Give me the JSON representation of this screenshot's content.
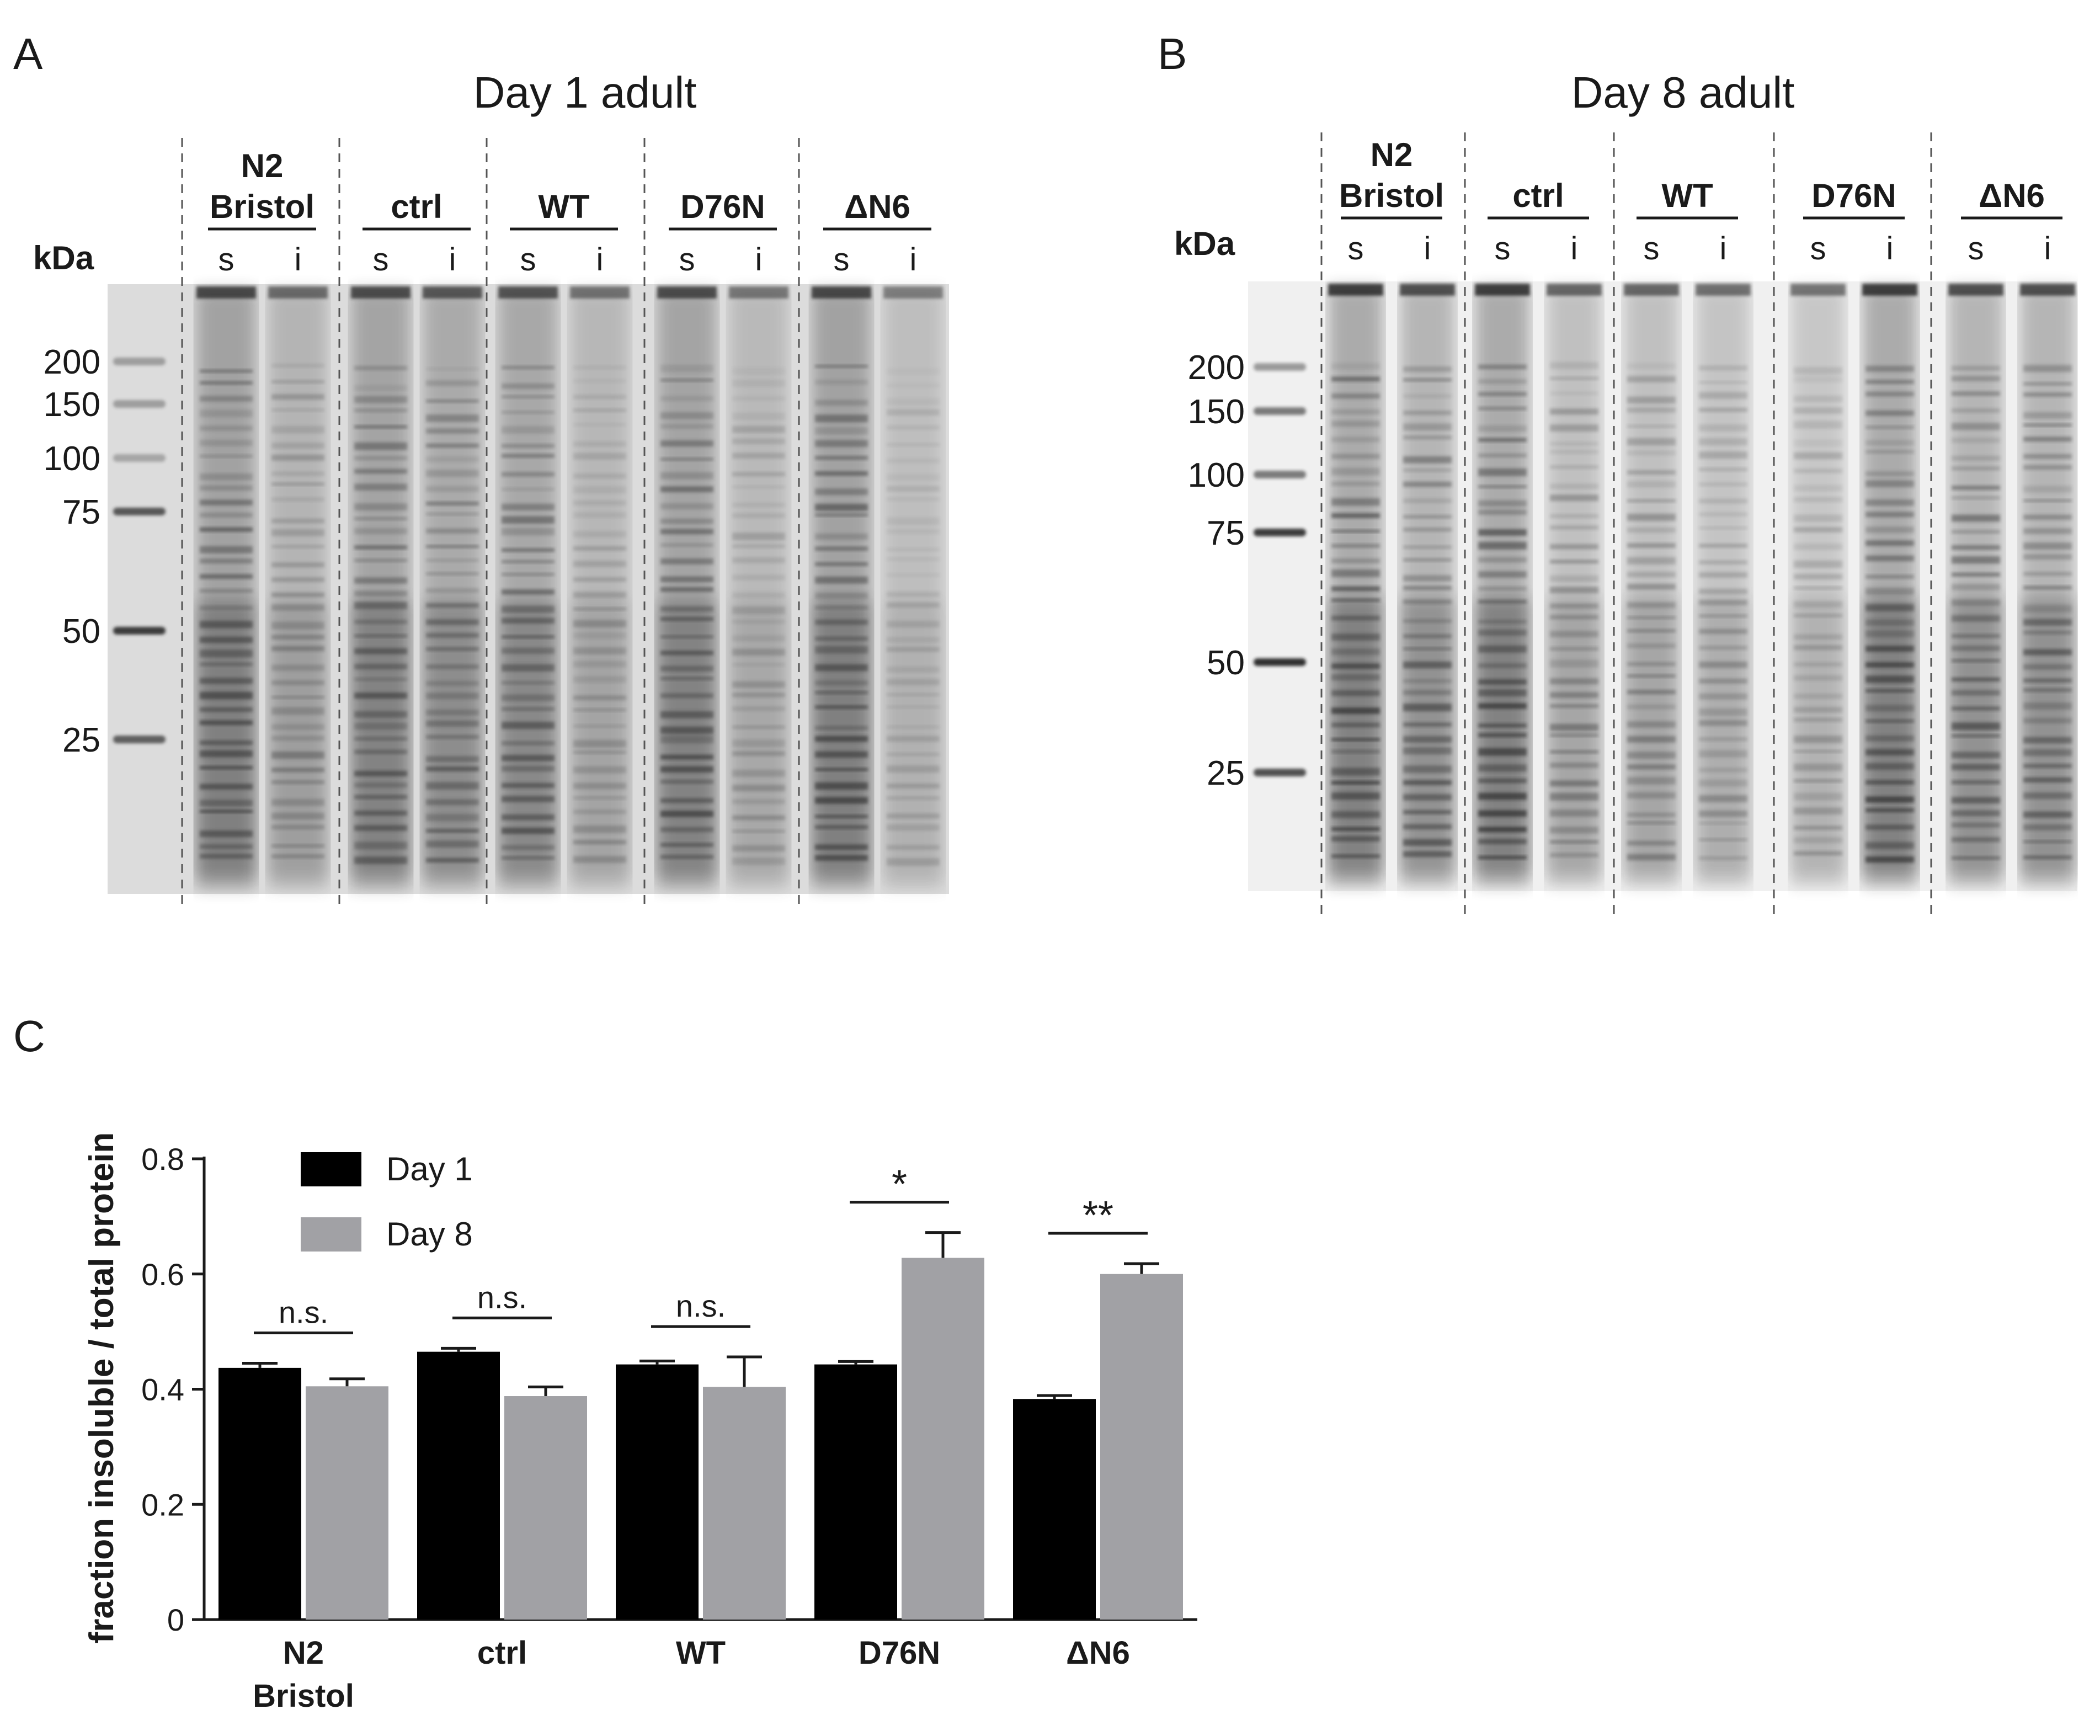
{
  "panels": {
    "a_letter": "A",
    "b_letter": "B",
    "c_letter": "C"
  },
  "gel_a": {
    "title": "Day 1 adult",
    "kda_label": "kDa",
    "markers": [
      "200",
      "150",
      "100",
      "75",
      "50",
      "25"
    ],
    "groups": [
      {
        "lines": [
          "N2",
          "Bristol"
        ],
        "lanes": [
          "s",
          "i"
        ]
      },
      {
        "lines": [
          "ctrl"
        ],
        "lanes": [
          "s",
          "i"
        ]
      },
      {
        "lines": [
          "WT"
        ],
        "lanes": [
          "s",
          "i"
        ]
      },
      {
        "lines": [
          "D76N"
        ],
        "lanes": [
          "s",
          "i"
        ]
      },
      {
        "lines": [
          "ΔN6"
        ],
        "lanes": [
          "s",
          "i"
        ]
      }
    ],
    "colors": {
      "background": "#dcdcdc",
      "band": "#2a2a2a"
    }
  },
  "gel_b": {
    "title": "Day 8 adult",
    "kda_label": "kDa",
    "markers": [
      "200",
      "150",
      "100",
      "75",
      "50",
      "25"
    ],
    "groups": [
      {
        "lines": [
          "N2",
          "Bristol"
        ],
        "lanes": [
          "s",
          "i"
        ]
      },
      {
        "lines": [
          "ctrl"
        ],
        "lanes": [
          "s",
          "i"
        ]
      },
      {
        "lines": [
          "WT"
        ],
        "lanes": [
          "s",
          "i"
        ]
      },
      {
        "lines": [
          "D76N"
        ],
        "lanes": [
          "s",
          "i"
        ]
      },
      {
        "lines": [
          "ΔN6"
        ],
        "lanes": [
          "s",
          "i"
        ]
      }
    ],
    "colors": {
      "background": "#f0f0f0",
      "band": "#1a1a1a"
    }
  },
  "chart_data": {
    "type": "bar",
    "categories": [
      [
        "N2",
        "Bristol"
      ],
      [
        "ctrl"
      ],
      [
        "WT"
      ],
      [
        "D76N"
      ],
      [
        "ΔN6"
      ]
    ],
    "series": [
      {
        "name": "Day 1",
        "values": [
          0.437,
          0.465,
          0.443,
          0.443,
          0.383
        ],
        "errors": [
          0.008,
          0.006,
          0.006,
          0.005,
          0.006
        ],
        "color": "#000000"
      },
      {
        "name": "Day 8",
        "values": [
          0.405,
          0.388,
          0.404,
          0.628,
          0.6
        ],
        "errors": [
          0.013,
          0.016,
          0.052,
          0.044,
          0.018
        ],
        "color": "#a1a1a5"
      }
    ],
    "ylabel": "fraction insoluble / total protein",
    "ylim": [
      0,
      0.8
    ],
    "yticks": [
      "0",
      "0.2",
      "0.4",
      "0.6",
      "0.8"
    ],
    "ytick_values": [
      0,
      0.2,
      0.4,
      0.6,
      0.8
    ],
    "significance": [
      "n.s.",
      "n.s.",
      "n.s.",
      "*",
      "**"
    ],
    "legend_position": "top-left",
    "grid": false
  }
}
